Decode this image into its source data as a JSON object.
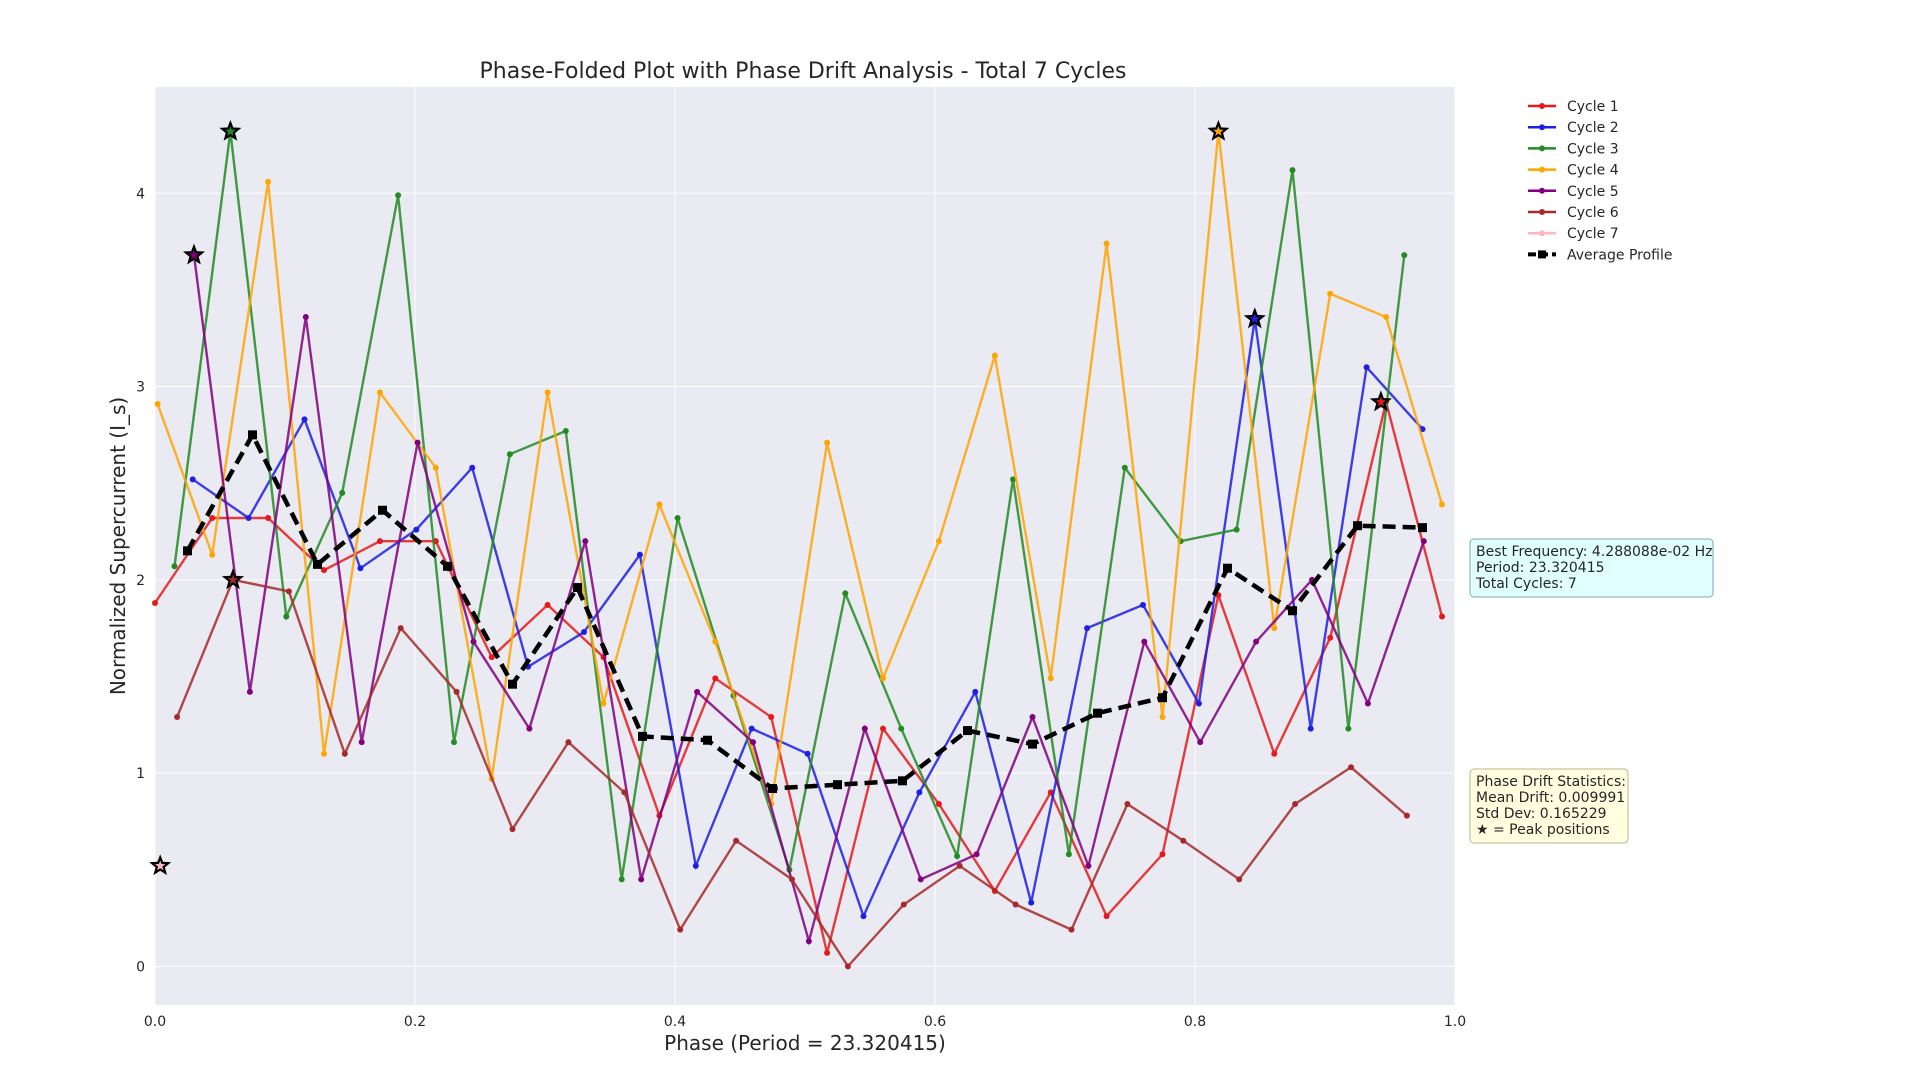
{
  "chart_data": {
    "type": "line",
    "title": "Phase-Folded Plot with Phase Drift Analysis - Total 7 Cycles",
    "xlabel": "Phase (Period = 23.320415)",
    "ylabel": "Normalized Supercurrent (I_s)",
    "xlim": [
      0.0,
      1.0
    ],
    "ylim": [
      -0.2,
      4.55
    ],
    "x_ticks": [
      "0.0",
      "0.2",
      "0.4",
      "0.6",
      "0.8",
      "1.0"
    ],
    "y_ticks": [
      "0",
      "1",
      "2",
      "3",
      "4"
    ],
    "grid": true,
    "legend_position": "outside-top-right",
    "series": [
      {
        "name": "Cycle 1",
        "color": "#e41a1c",
        "x": [
          0.0,
          0.044,
          0.087,
          0.13,
          0.173,
          0.216,
          0.259,
          0.302,
          0.345,
          0.388,
          0.431,
          0.474,
          0.517,
          0.56,
          0.603,
          0.646,
          0.689,
          0.732,
          0.775,
          0.818,
          0.861,
          0.904,
          0.947,
          0.99
        ],
        "y": [
          1.88,
          2.32,
          2.32,
          2.05,
          2.2,
          2.2,
          1.6,
          1.87,
          1.6,
          0.78,
          1.49,
          1.29,
          0.07,
          1.23,
          0.84,
          0.39,
          0.9,
          0.26,
          0.58,
          1.92,
          1.1,
          1.7,
          2.92,
          1.81
        ]
      },
      {
        "name": "Cycle 2",
        "color": "#1f1fe6",
        "x": [
          0.029,
          0.072,
          0.115,
          0.158,
          0.201,
          0.244,
          0.287,
          0.33,
          0.373,
          0.416,
          0.459,
          0.502,
          0.545,
          0.588,
          0.631,
          0.674,
          0.717,
          0.76,
          0.803,
          0.846,
          0.889,
          0.932,
          0.975
        ],
        "y": [
          2.52,
          2.32,
          2.83,
          2.06,
          2.26,
          2.58,
          1.55,
          1.73,
          2.13,
          0.52,
          1.23,
          1.1,
          0.26,
          0.9,
          1.42,
          0.33,
          1.75,
          1.87,
          1.36,
          3.35,
          1.23,
          3.1,
          2.78
        ]
      },
      {
        "name": "Cycle 3",
        "color": "#228b22",
        "x": [
          0.015,
          0.058,
          0.101,
          0.144,
          0.187,
          0.23,
          0.273,
          0.316,
          0.359,
          0.402,
          0.445,
          0.488,
          0.531,
          0.574,
          0.617,
          0.66,
          0.703,
          0.746,
          0.789,
          0.832,
          0.875,
          0.918,
          0.961
        ],
        "y": [
          2.07,
          4.32,
          1.81,
          2.45,
          3.99,
          1.16,
          2.65,
          2.77,
          0.45,
          2.32,
          1.4,
          0.5,
          1.93,
          1.23,
          0.57,
          2.52,
          0.58,
          2.58,
          2.2,
          2.26,
          4.12,
          1.23,
          3.68
        ]
      },
      {
        "name": "Cycle 4",
        "color": "#ffa500",
        "x": [
          0.002,
          0.044,
          0.087,
          0.13,
          0.173,
          0.216,
          0.259,
          0.302,
          0.345,
          0.388,
          0.431,
          0.474,
          0.517,
          0.56,
          0.603,
          0.646,
          0.689,
          0.732,
          0.775,
          0.818,
          0.861,
          0.904,
          0.947,
          0.99
        ],
        "y": [
          2.91,
          2.13,
          4.06,
          1.1,
          2.97,
          2.58,
          0.97,
          2.97,
          1.36,
          2.39,
          1.68,
          0.84,
          2.71,
          1.49,
          2.2,
          3.16,
          1.49,
          3.74,
          1.29,
          4.32,
          1.75,
          3.48,
          3.36,
          2.39
        ]
      },
      {
        "name": "Cycle 5",
        "color": "#800080",
        "x": [
          0.03,
          0.073,
          0.116,
          0.159,
          0.202,
          0.245,
          0.288,
          0.331,
          0.374,
          0.417,
          0.46,
          0.503,
          0.546,
          0.589,
          0.632,
          0.675,
          0.718,
          0.761,
          0.804,
          0.847,
          0.89,
          0.933,
          0.976
        ],
        "y": [
          3.68,
          1.42,
          3.36,
          1.16,
          2.71,
          1.68,
          1.23,
          2.2,
          0.45,
          1.42,
          1.16,
          0.13,
          1.23,
          0.45,
          0.58,
          1.29,
          0.52,
          1.68,
          1.16,
          1.68,
          2.0,
          1.36,
          2.2
        ]
      },
      {
        "name": "Cycle 6",
        "color": "#a52a2a",
        "x": [
          0.017,
          0.06,
          0.103,
          0.146,
          0.189,
          0.232,
          0.275,
          0.318,
          0.361,
          0.404,
          0.447,
          0.49,
          0.533,
          0.576,
          0.619,
          0.662,
          0.705,
          0.748,
          0.791,
          0.834,
          0.877,
          0.92,
          0.963
        ],
        "y": [
          1.29,
          2.0,
          1.94,
          1.1,
          1.75,
          1.42,
          0.71,
          1.16,
          0.9,
          0.19,
          0.65,
          0.45,
          0.0,
          0.32,
          0.52,
          0.32,
          0.19,
          0.84,
          0.65,
          0.45,
          0.84,
          1.03,
          0.78
        ]
      },
      {
        "name": "Cycle 7",
        "color": "#ffb6c1",
        "x": [],
        "y": []
      },
      {
        "name": "Average Profile",
        "color": "#000000",
        "x": [
          0.025,
          0.075,
          0.125,
          0.175,
          0.225,
          0.275,
          0.325,
          0.375,
          0.425,
          0.475,
          0.525,
          0.575,
          0.625,
          0.675,
          0.725,
          0.775,
          0.825,
          0.875,
          0.925,
          0.975
        ],
        "y": [
          2.15,
          2.75,
          2.08,
          2.36,
          2.07,
          1.46,
          1.96,
          1.19,
          1.17,
          0.92,
          0.94,
          0.96,
          1.22,
          1.15,
          1.31,
          1.39,
          2.06,
          1.84,
          2.28,
          2.27
        ]
      }
    ],
    "peaks": [
      {
        "x": 0.058,
        "y": 4.32,
        "color": "#228b22"
      },
      {
        "x": 0.03,
        "y": 3.68,
        "color": "#800080"
      },
      {
        "x": 0.06,
        "y": 2.0,
        "color": "#a52a2a"
      },
      {
        "x": 0.004,
        "y": 0.52,
        "color": "#ffb6c1"
      },
      {
        "x": 0.818,
        "y": 4.32,
        "color": "#ffa500"
      },
      {
        "x": 0.846,
        "y": 3.35,
        "color": "#1f1fe6"
      },
      {
        "x": 0.943,
        "y": 2.92,
        "color": "#e41a1c"
      }
    ],
    "annotations": {
      "info_lines": [
        "Best Frequency: 4.288088e-02 Hz",
        "Period: 23.320415",
        "Total Cycles: 7"
      ],
      "stats_lines": [
        "Phase Drift Statistics:",
        "Mean Drift: 0.009991",
        "Std Dev: 0.165229",
        "★ = Peak positions"
      ]
    }
  }
}
